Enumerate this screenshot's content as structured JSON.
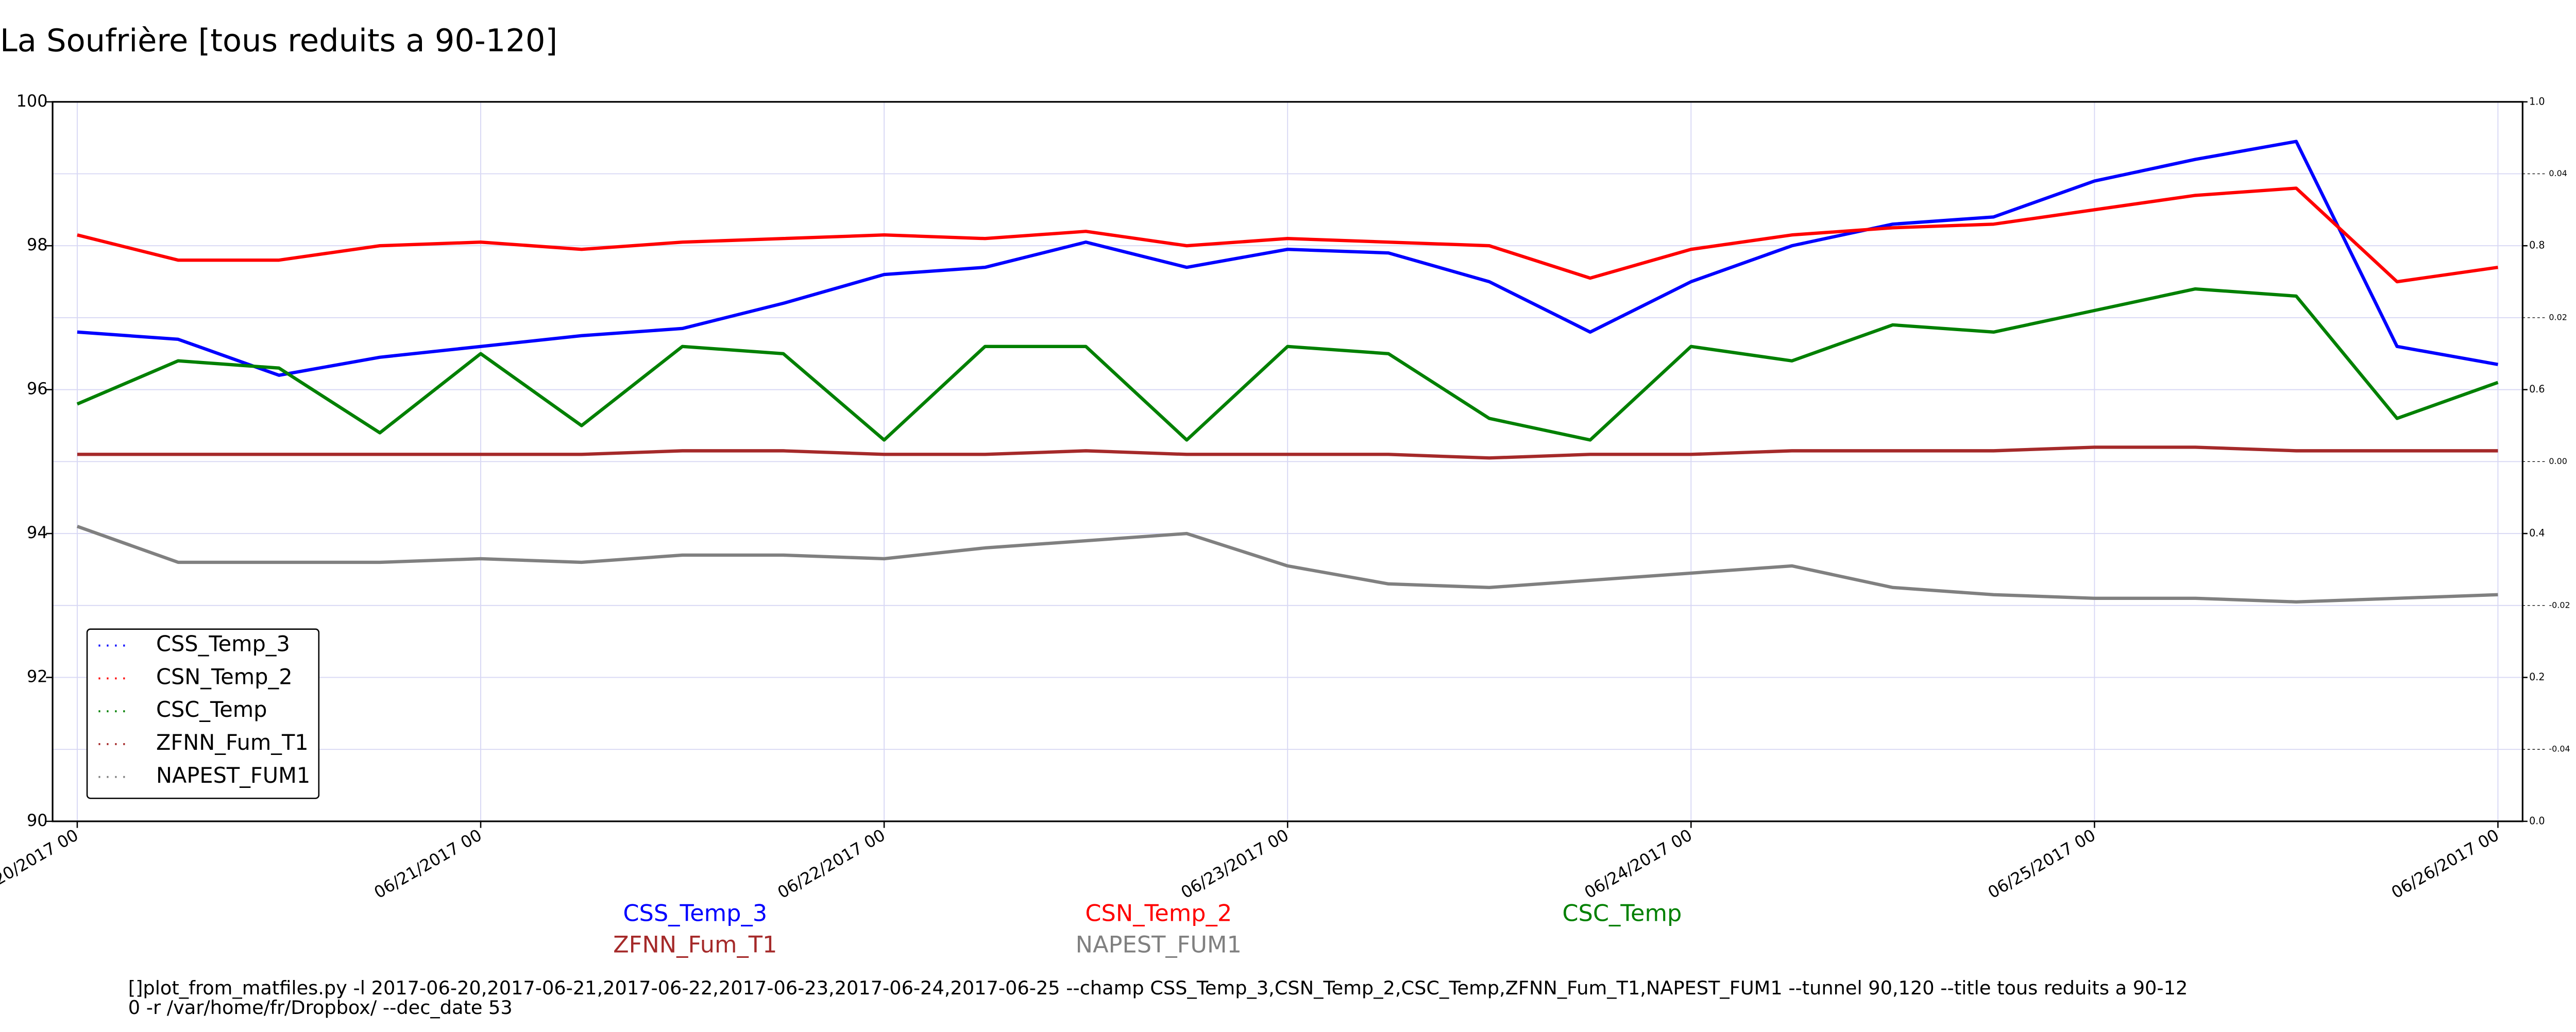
{
  "chart_data": {
    "type": "line",
    "title": "La Soufrière [tous reduits a 90-120]",
    "x": [
      "2017-06-20T00:00",
      "2017-06-20T06:00",
      "2017-06-20T12:00",
      "2017-06-20T18:00",
      "2017-06-21T00:00",
      "2017-06-21T06:00",
      "2017-06-21T12:00",
      "2017-06-21T18:00",
      "2017-06-22T00:00",
      "2017-06-22T06:00",
      "2017-06-22T12:00",
      "2017-06-22T18:00",
      "2017-06-23T00:00",
      "2017-06-23T06:00",
      "2017-06-23T12:00",
      "2017-06-23T18:00",
      "2017-06-24T00:00",
      "2017-06-24T06:00",
      "2017-06-24T12:00",
      "2017-06-24T18:00",
      "2017-06-25T00:00",
      "2017-06-25T06:00",
      "2017-06-25T12:00",
      "2017-06-25T18:00",
      "2017-06-26T00:00"
    ],
    "series": [
      {
        "name": "CSS_Temp_3",
        "color": "#0000ff",
        "values": [
          96.8,
          96.7,
          96.2,
          96.45,
          96.6,
          96.75,
          96.85,
          97.2,
          97.6,
          97.7,
          98.05,
          97.7,
          97.95,
          97.9,
          97.5,
          96.8,
          97.5,
          98.0,
          98.3,
          98.4,
          98.9,
          99.2,
          99.45,
          96.6,
          96.35
        ]
      },
      {
        "name": "CSN_Temp_2",
        "color": "#ff0000",
        "values": [
          98.15,
          97.8,
          97.8,
          98.0,
          98.05,
          97.95,
          98.05,
          98.1,
          98.15,
          98.1,
          98.2,
          98.0,
          98.1,
          98.05,
          98.0,
          97.55,
          97.95,
          98.15,
          98.25,
          98.3,
          98.5,
          98.7,
          98.8,
          97.5,
          97.7
        ]
      },
      {
        "name": "CSC_Temp",
        "color": "#008000",
        "values": [
          95.8,
          96.4,
          96.3,
          95.4,
          96.5,
          95.5,
          96.6,
          96.5,
          95.3,
          96.6,
          96.6,
          95.3,
          96.6,
          96.5,
          95.6,
          95.3,
          96.6,
          96.4,
          96.9,
          96.8,
          97.1,
          97.4,
          97.3,
          95.6,
          96.1
        ]
      },
      {
        "name": "ZFNN_Fum_T1",
        "color": "#a52a2a",
        "values": [
          95.1,
          95.1,
          95.1,
          95.1,
          95.1,
          95.1,
          95.15,
          95.15,
          95.1,
          95.1,
          95.15,
          95.1,
          95.1,
          95.1,
          95.05,
          95.1,
          95.1,
          95.15,
          95.15,
          95.15,
          95.2,
          95.2,
          95.15,
          95.15,
          95.15
        ]
      },
      {
        "name": "NAPEST_FUM1",
        "color": "#808080",
        "values": [
          94.1,
          93.6,
          93.6,
          93.6,
          93.65,
          93.6,
          93.7,
          93.7,
          93.65,
          93.8,
          93.9,
          94.0,
          93.55,
          93.3,
          93.25,
          93.35,
          93.45,
          93.55,
          93.25,
          93.15,
          93.1,
          93.1,
          93.05,
          93.1,
          93.15
        ]
      }
    ],
    "xlim": [
      "2017-06-19T22:32",
      "2017-06-26T01:28"
    ],
    "xticks": [
      {
        "value": "2017-06-20T00:00",
        "label": "06/20/2017 00"
      },
      {
        "value": "2017-06-21T00:00",
        "label": "06/21/2017 00"
      },
      {
        "value": "2017-06-22T00:00",
        "label": "06/22/2017 00"
      },
      {
        "value": "2017-06-23T00:00",
        "label": "06/23/2017 00"
      },
      {
        "value": "2017-06-24T00:00",
        "label": "06/24/2017 00"
      },
      {
        "value": "2017-06-25T00:00",
        "label": "06/25/2017 00"
      },
      {
        "value": "2017-06-26T00:00",
        "label": "06/26/2017 00"
      }
    ],
    "ylim": [
      90,
      100
    ],
    "yticks": [
      90,
      92,
      94,
      96,
      98,
      100
    ],
    "y2lim": [
      0,
      1
    ],
    "y2ticks": [
      {
        "value": 0,
        "label": "0.0"
      },
      0.2,
      0.4,
      0.6,
      0.8,
      {
        "value": 1,
        "label": "1.0"
      }
    ],
    "y3lim": [
      -0.05,
      0.05
    ],
    "y3ticks": [
      {
        "value": -0.04,
        "label": "-0.04"
      },
      {
        "value": -0.02,
        "label": "-0.02"
      },
      {
        "value": 0,
        "label": "0.00"
      },
      0.02,
      0.04
    ],
    "grid": true,
    "legend": "lower left",
    "command": [
      "[]plot_from_matfiles.py -l 2017-06-20,2017-06-21,2017-06-22,2017-06-23,2017-06-24,2017-06-25 --champ CSS_Temp_3,CSN_Temp_2,CSC_Temp,ZFNN_Fum_T1,NAPEST_FUM1 --tunnel 90,120 --title tous reduits a 90-12",
      "0 -r /var/home/fr/Dropbox/ --dec_date 53"
    ]
  }
}
